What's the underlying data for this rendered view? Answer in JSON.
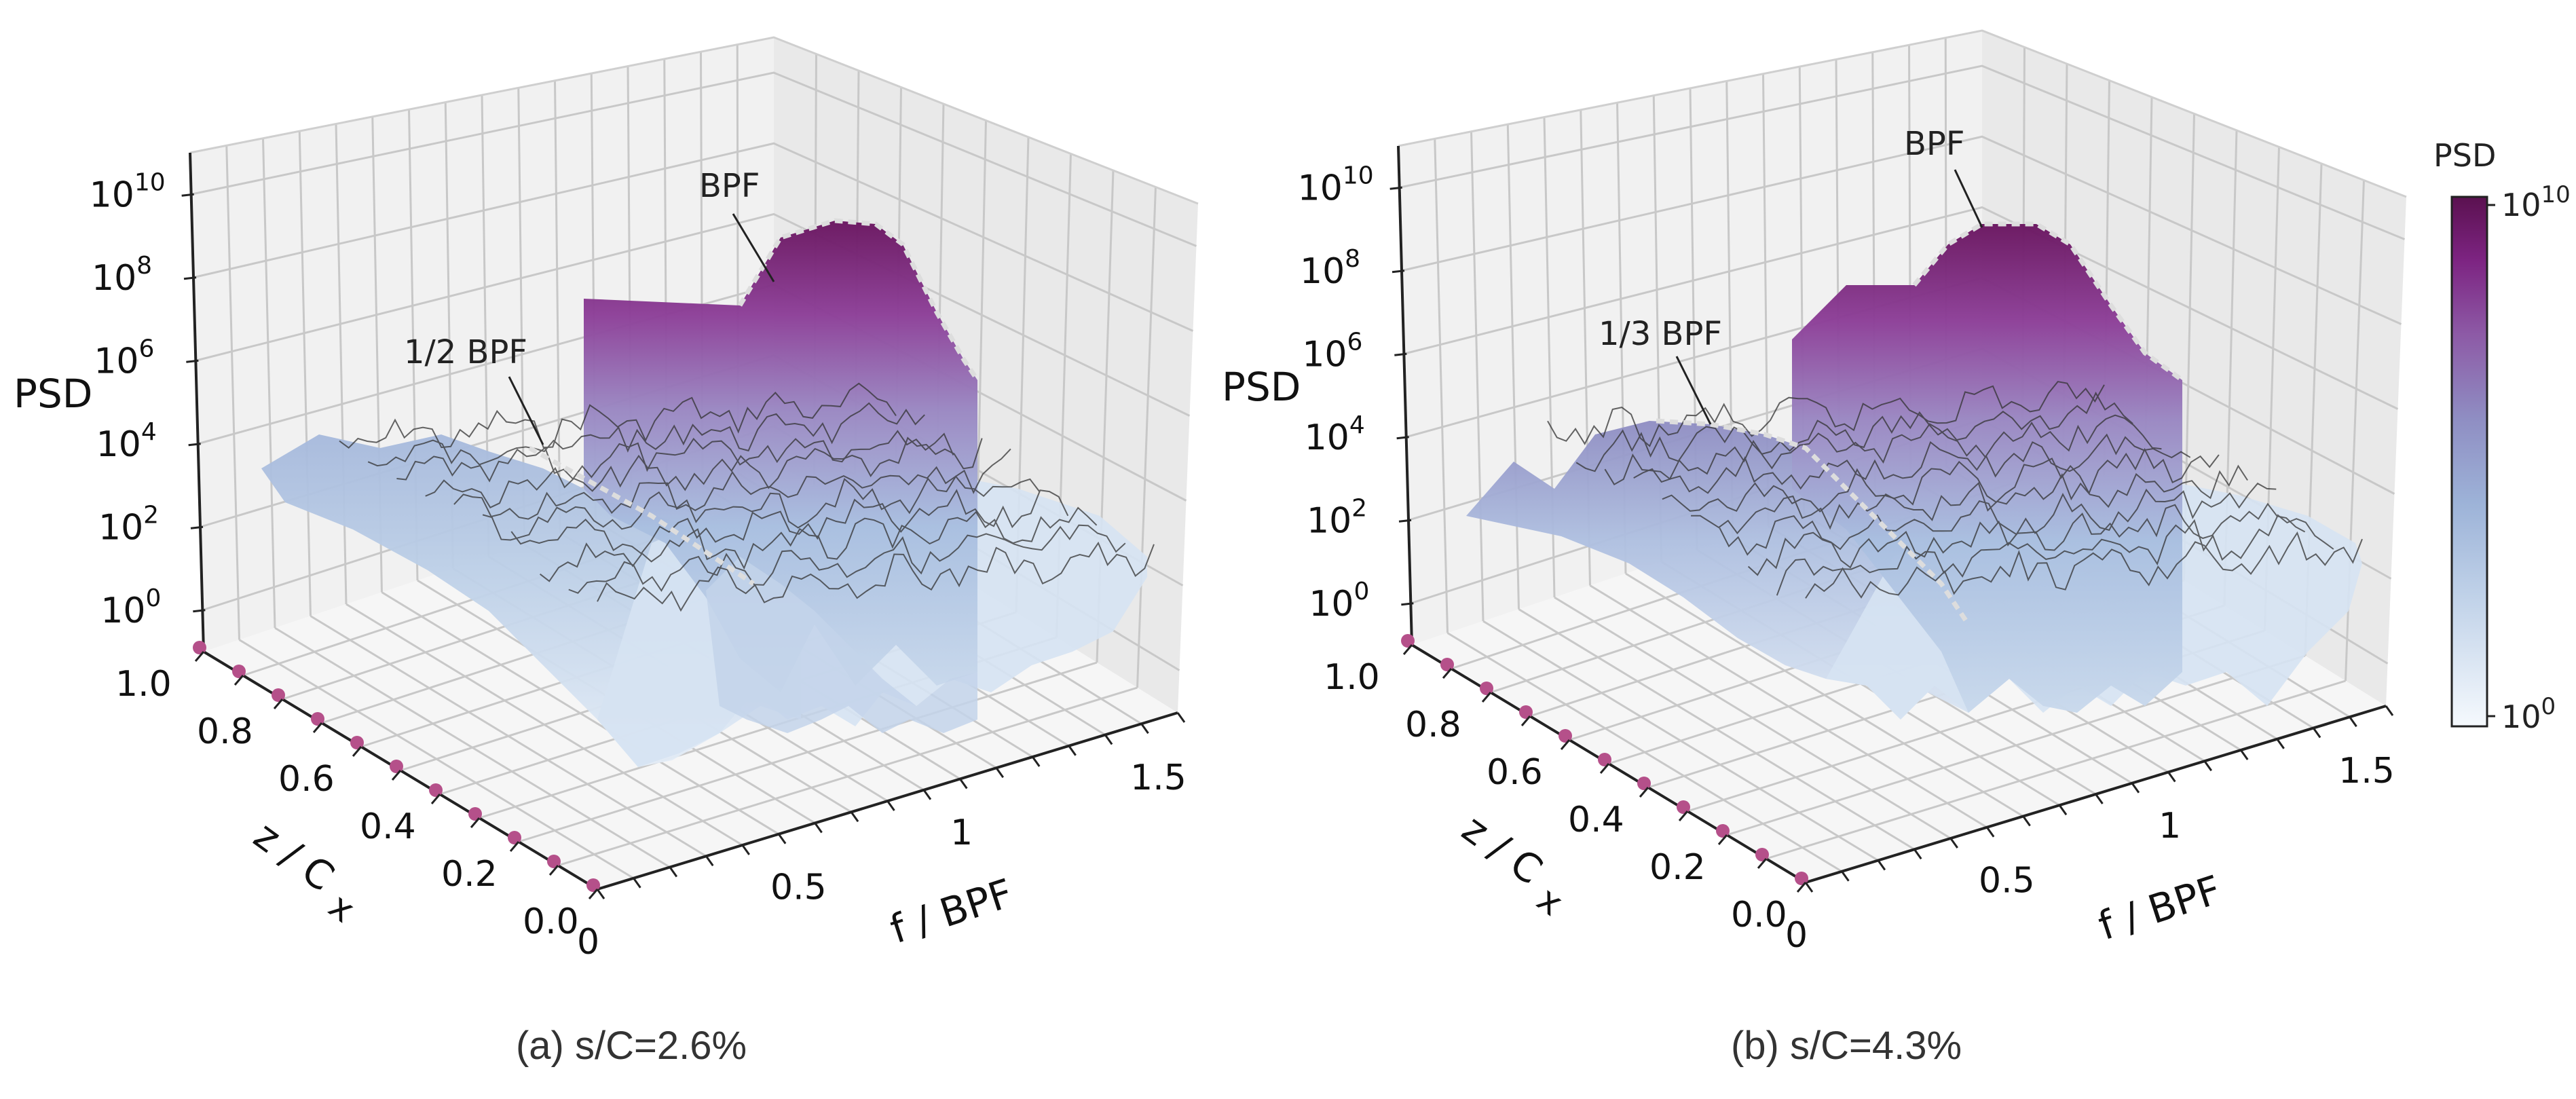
{
  "colorbar": {
    "title": "PSD",
    "top_label": "10",
    "top_exp": "10",
    "bottom_label": "10",
    "bottom_exp": "0",
    "colors": [
      "#f5f9fd",
      "#bfd1e8",
      "#9db3d8",
      "#8f8ec3",
      "#8d5aa6",
      "#7d2482",
      "#5b1150"
    ]
  },
  "chart_data": [
    {
      "type": "surface",
      "panel": "a",
      "caption": "(a) s/C=2.6%",
      "zlabel": "PSD",
      "ylabel": "z / C",
      "ylabel_sub": "x",
      "xlabel": "f / BPF",
      "x_ticks": [
        "0",
        "0.5",
        "1",
        "1.5"
      ],
      "y_ticks": [
        "0.0",
        "0.2",
        "0.4",
        "0.6",
        "0.8",
        "1.0"
      ],
      "z_ticks": [
        {
          "base": "10",
          "exp": "0"
        },
        {
          "base": "10",
          "exp": "2"
        },
        {
          "base": "10",
          "exp": "4"
        },
        {
          "base": "10",
          "exp": "6"
        },
        {
          "base": "10",
          "exp": "8"
        },
        {
          "base": "10",
          "exp": "10"
        }
      ],
      "zlim_log10": [
        -1,
        11
      ],
      "annotations": [
        {
          "text": "BPF",
          "x": 1.0,
          "z_log10": 9.6
        },
        {
          "text": "1/2 BPF",
          "x": 0.5,
          "z_log10": 4.2
        }
      ],
      "probe_points_z": [
        0.0,
        0.1,
        0.2,
        0.3,
        0.4,
        0.5,
        0.6,
        0.7,
        0.8,
        0.9,
        1.0
      ],
      "ridges": [
        {
          "name": "1/2 BPF ridge",
          "x": 0.5,
          "z_range": [
            0.2,
            1.0
          ],
          "peak_log10": 4.0
        },
        {
          "name": "BPF ridge",
          "x": 1.0,
          "z_range": [
            0.3,
            0.9
          ],
          "peak_log10": 9.7
        }
      ]
    },
    {
      "type": "surface",
      "panel": "b",
      "caption": "(b) s/C=4.3%",
      "zlabel": "PSD",
      "ylabel": "z / C",
      "ylabel_sub": "x",
      "xlabel": "f / BPF",
      "x_ticks": [
        "0",
        "0.5",
        "1",
        "1.5"
      ],
      "y_ticks": [
        "0.0",
        "0.2",
        "0.4",
        "0.6",
        "0.8",
        "1.0"
      ],
      "z_ticks": [
        {
          "base": "10",
          "exp": "0"
        },
        {
          "base": "10",
          "exp": "2"
        },
        {
          "base": "10",
          "exp": "4"
        },
        {
          "base": "10",
          "exp": "6"
        },
        {
          "base": "10",
          "exp": "8"
        },
        {
          "base": "10",
          "exp": "10"
        }
      ],
      "zlim_log10": [
        -1,
        11
      ],
      "annotations": [
        {
          "text": "BPF",
          "x": 1.0,
          "z_log10": 9.8
        },
        {
          "text": "1/3 BPF",
          "x": 0.33,
          "z_log10": 4.6
        }
      ],
      "probe_points_z": [
        0.0,
        0.1,
        0.2,
        0.3,
        0.4,
        0.5,
        0.6,
        0.7,
        0.8,
        0.9,
        1.0
      ],
      "ridges": [
        {
          "name": "1/3 BPF ridge",
          "x": 0.33,
          "z_range": [
            0.3,
            1.0
          ],
          "peak_log10": 4.5
        },
        {
          "name": "BPF ridge",
          "x": 1.0,
          "z_range": [
            0.3,
            0.9
          ],
          "peak_log10": 9.8
        }
      ]
    }
  ]
}
